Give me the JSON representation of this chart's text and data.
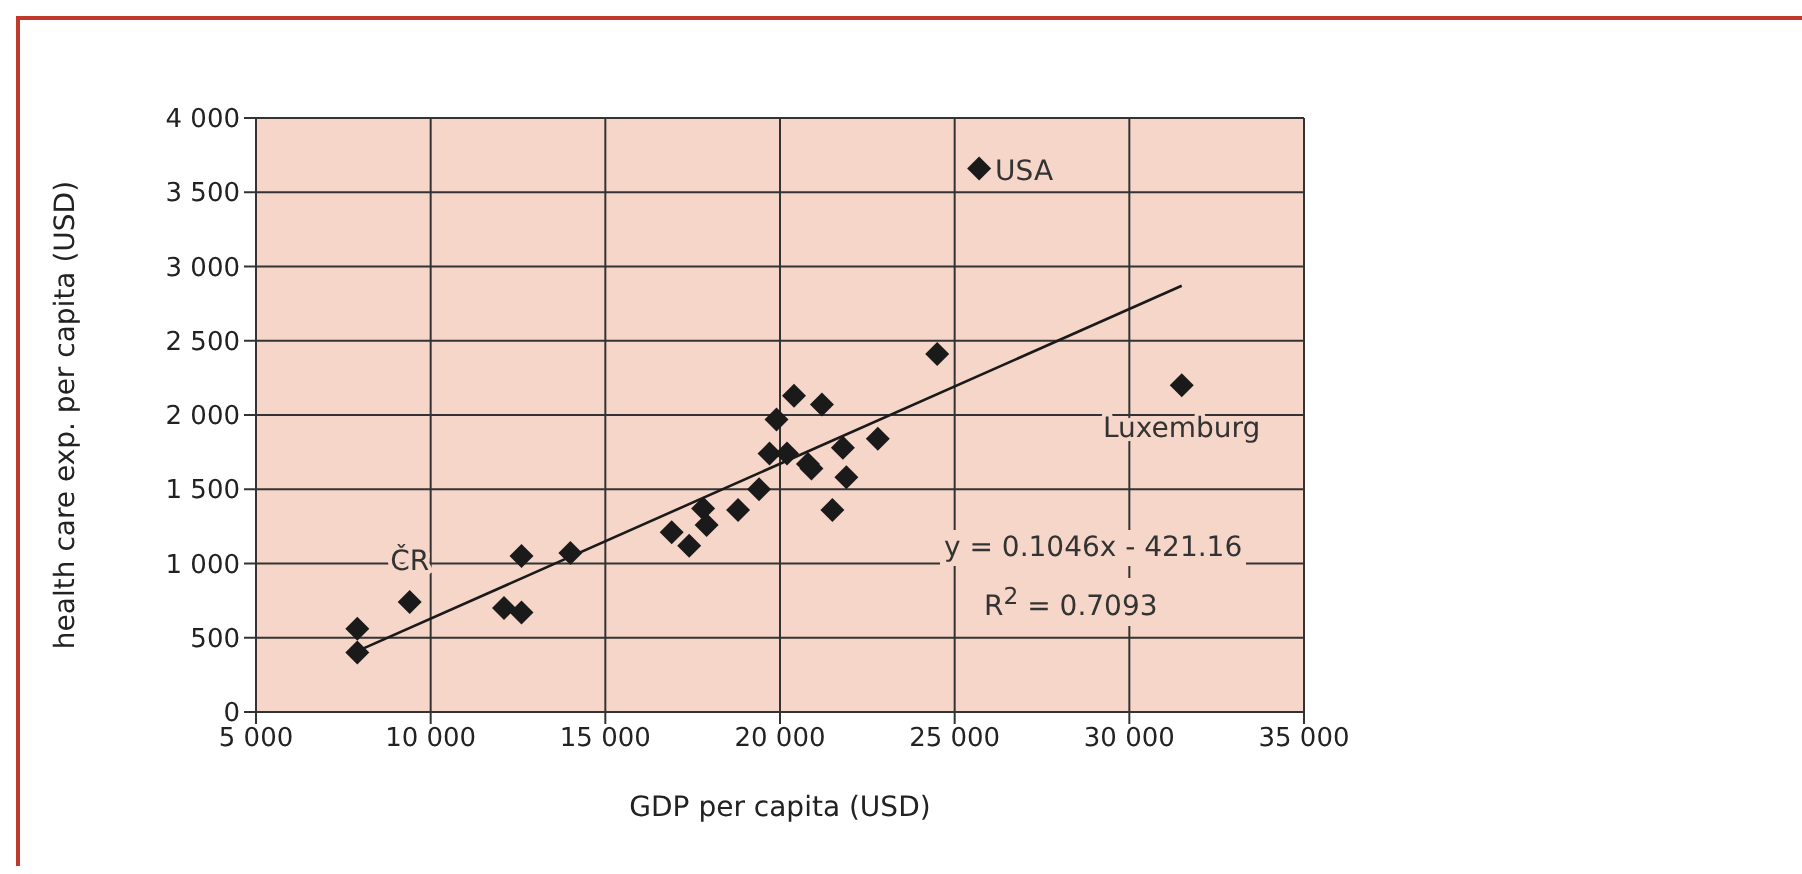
{
  "chart_data": {
    "type": "scatter",
    "xlabel": "GDP per capita (USD)",
    "ylabel": "health care exp. per capita (USD)",
    "xlim": [
      5000,
      35000
    ],
    "xticks": [
      {
        "value": 5000,
        "label": "5 000"
      },
      {
        "value": 10000,
        "label": "10 000"
      },
      {
        "value": 15000,
        "label": "15 000"
      },
      {
        "value": 20000,
        "label": "20 000"
      },
      {
        "value": 25000,
        "label": "25 000"
      },
      {
        "value": 30000,
        "label": "30 000"
      },
      {
        "value": 35000,
        "label": "35 000"
      }
    ],
    "ylim": [
      0,
      4000
    ],
    "yticks": [
      0,
      500,
      {
        "value": 1000,
        "label": "1 000"
      },
      {
        "value": 1500,
        "label": "1 500"
      },
      {
        "value": 2000,
        "label": "2 000"
      },
      {
        "value": 2500,
        "label": "2 500"
      },
      {
        "value": 3000,
        "label": "3 000"
      },
      {
        "value": 3500,
        "label": "3 500"
      },
      {
        "value": 4000,
        "label": "4 000"
      }
    ],
    "grid": true,
    "marker": "diamond",
    "series": [
      {
        "color": "#1a1a1a",
        "x": [
          7900,
          7900,
          9400,
          12100,
          12600,
          12600,
          14000,
          16900,
          17400,
          17800,
          17900,
          18800,
          19400,
          19700,
          19900,
          20200,
          20400,
          20800,
          20900,
          21200,
          21500,
          21800,
          21900,
          22800,
          24500,
          25700,
          31500
        ],
        "values": [
          560,
          400,
          740,
          700,
          670,
          1050,
          1070,
          1210,
          1120,
          1370,
          1260,
          1360,
          1500,
          1740,
          1970,
          1740,
          2130,
          1670,
          1640,
          2070,
          1360,
          1780,
          1580,
          1840,
          2410,
          3660,
          2200
        ]
      },
      {
        "type": "line",
        "marker": "none",
        "color": "#1a1a1a",
        "x": [
          7900,
          31500
        ],
        "values": [
          410,
          2870
        ]
      }
    ],
    "annotations": [
      {
        "text": "ČR",
        "x": 9400,
        "y": 740
      },
      {
        "text": "USA",
        "x": 25700,
        "y": 3660
      },
      {
        "text": "Luxemburg",
        "x": 31500,
        "y": 2200
      },
      "y = 0.1046x - 421.16",
      "R$^{2}$ = 0.7093"
    ]
  }
}
